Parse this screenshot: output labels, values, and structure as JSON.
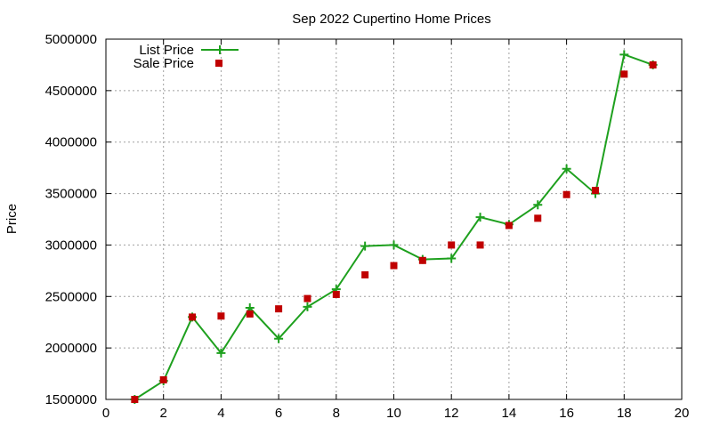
{
  "chart_data": {
    "type": "line",
    "title": "Sep 2022 Cupertino Home Prices",
    "xlabel": "",
    "ylabel": "Price",
    "xlim": [
      0,
      20
    ],
    "ylim": [
      1500000,
      5000000
    ],
    "x_ticks": [
      0,
      2,
      4,
      6,
      8,
      10,
      12,
      14,
      16,
      18,
      20
    ],
    "y_ticks": [
      1500000,
      2000000,
      2500000,
      3000000,
      3500000,
      4000000,
      4500000,
      5000000
    ],
    "grid": true,
    "legend_position": "top-left",
    "series": [
      {
        "name": "List Price",
        "style": "line-with-plus-markers",
        "color": "#1ea01e",
        "x": [
          1,
          2,
          3,
          4,
          5,
          6,
          7,
          8,
          9,
          10,
          11,
          12,
          13,
          14,
          15,
          16,
          17,
          18,
          19
        ],
        "values": [
          1500000,
          1680000,
          2300000,
          1950000,
          2390000,
          2090000,
          2400000,
          2570000,
          2990000,
          3000000,
          2860000,
          2870000,
          3270000,
          3200000,
          3390000,
          3740000,
          3500000,
          4850000,
          4750000
        ]
      },
      {
        "name": "Sale Price",
        "style": "square-markers",
        "color": "#c00000",
        "x": [
          1,
          2,
          3,
          4,
          5,
          6,
          7,
          8,
          9,
          10,
          11,
          12,
          13,
          14,
          15,
          16,
          17,
          18,
          19
        ],
        "values": [
          1500000,
          1690000,
          2300000,
          2310000,
          2330000,
          2380000,
          2480000,
          2520000,
          2710000,
          2800000,
          2850000,
          3000000,
          3000000,
          3190000,
          3260000,
          3490000,
          3530000,
          4660000,
          4750000
        ]
      }
    ]
  }
}
